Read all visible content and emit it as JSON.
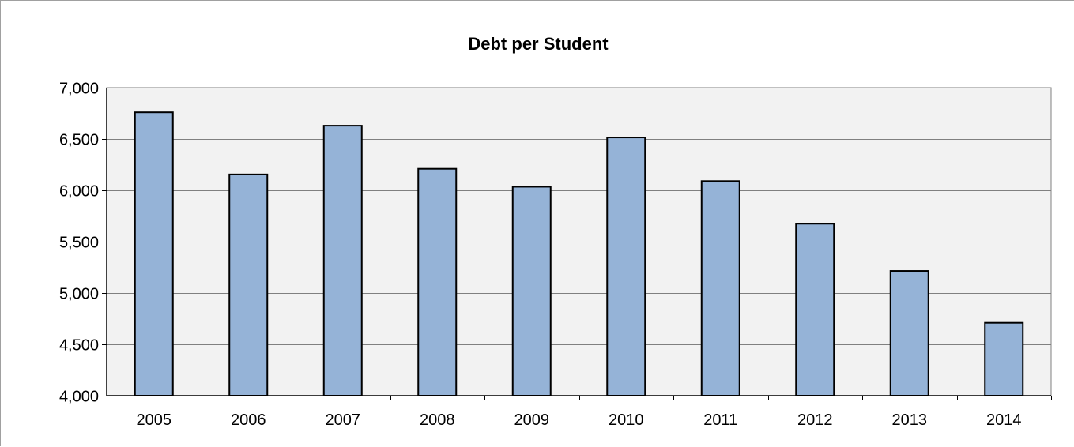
{
  "chart_data": {
    "type": "bar",
    "title": "Debt per Student",
    "xlabel": "",
    "ylabel": "",
    "categories": [
      "2005",
      "2006",
      "2007",
      "2008",
      "2009",
      "2010",
      "2011",
      "2012",
      "2013",
      "2014"
    ],
    "values": [
      6760,
      6155,
      6630,
      6210,
      6035,
      6515,
      6090,
      5675,
      5215,
      4710
    ],
    "ylim": [
      4000,
      7000
    ],
    "yticks": [
      4000,
      4500,
      5000,
      5500,
      6000,
      6500,
      7000
    ],
    "ytick_labels": [
      "4,000",
      "4,500",
      "5,000",
      "5,500",
      "6,000",
      "6,500",
      "7,000"
    ],
    "grid": true,
    "legend": "none",
    "colors": {
      "bar_fill": "#95b3d7",
      "bar_stroke": "#000000",
      "plot_background": "#f2f2f2",
      "gridline": "#808080"
    }
  }
}
